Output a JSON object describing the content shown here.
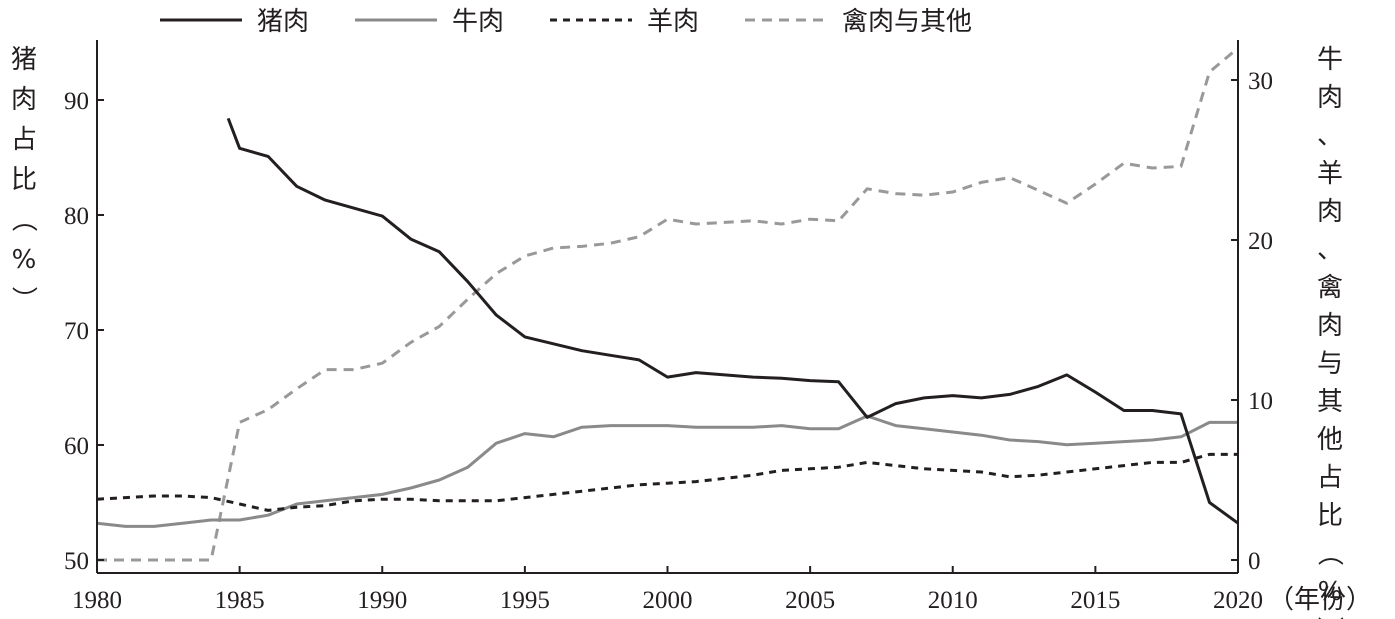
{
  "chart_data": {
    "type": "line",
    "xlabel": "（年份）",
    "ylabel_left": "猪肉占比（%）",
    "ylabel_right": "牛肉、羊肉、禽肉与其他占比（%）",
    "xlim": [
      1980,
      2020
    ],
    "ylim_left": [
      50,
      95
    ],
    "ylim_right": [
      0,
      32
    ],
    "x_ticks": [
      1980,
      1985,
      1990,
      1995,
      2000,
      2005,
      2010,
      2015,
      2020
    ],
    "y_ticks_left": [
      50,
      60,
      70,
      80,
      90
    ],
    "y_ticks_right": [
      0,
      10,
      20,
      30
    ],
    "legend_position": "top",
    "series": [
      {
        "name": "猪肉",
        "axis": "left",
        "color": "#231f20",
        "dash": "solid",
        "x": [
          1984.6,
          1985,
          1986,
          1987,
          1988,
          1989,
          1990,
          1991,
          1992,
          1993,
          1994,
          1995,
          1996,
          1997,
          1998,
          1999,
          2000,
          2001,
          2002,
          2003,
          2004,
          2005,
          2006,
          2007,
          2008,
          2009,
          2010,
          2011,
          2012,
          2013,
          2014,
          2015,
          2016,
          2017,
          2018,
          2019,
          2020
        ],
        "values": [
          88.4,
          85.8,
          85.1,
          82.5,
          81.3,
          80.6,
          79.9,
          77.9,
          76.8,
          74.2,
          71.3,
          69.4,
          68.8,
          68.2,
          67.8,
          67.4,
          65.9,
          66.3,
          66.1,
          65.9,
          65.8,
          65.6,
          65.5,
          62.4,
          63.6,
          64.1,
          64.3,
          64.1,
          64.4,
          65.1,
          66.1,
          64.6,
          63.0,
          63.0,
          62.7,
          55.0,
          53.2
        ]
      },
      {
        "name": "牛肉",
        "axis": "right",
        "color": "#8a8a8a",
        "dash": "solid",
        "x": [
          1980,
          1981,
          1982,
          1983,
          1984,
          1985,
          1986,
          1987,
          1988,
          1989,
          1990,
          1991,
          1992,
          1993,
          1994,
          1995,
          1996,
          1997,
          1998,
          1999,
          2000,
          2001,
          2002,
          2003,
          2004,
          2005,
          2006,
          2007,
          2008,
          2009,
          2010,
          2011,
          2012,
          2013,
          2014,
          2015,
          2016,
          2017,
          2018,
          2019,
          2020
        ],
        "values": [
          2.3,
          2.1,
          2.1,
          2.3,
          2.5,
          2.5,
          2.8,
          3.5,
          3.7,
          3.9,
          4.1,
          4.5,
          5.0,
          5.8,
          7.3,
          7.9,
          7.7,
          8.3,
          8.4,
          8.4,
          8.4,
          8.3,
          8.3,
          8.3,
          8.4,
          8.2,
          8.2,
          9.0,
          8.4,
          8.2,
          8.0,
          7.8,
          7.5,
          7.4,
          7.2,
          7.3,
          7.4,
          7.5,
          7.7,
          8.6,
          8.6
        ]
      },
      {
        "name": "羊肉",
        "axis": "right",
        "color": "#231f20",
        "dash": "short-dash",
        "x": [
          1980,
          1981,
          1982,
          1983,
          1984,
          1985,
          1986,
          1987,
          1988,
          1989,
          1990,
          1991,
          1992,
          1993,
          1994,
          1995,
          1996,
          1997,
          1998,
          1999,
          2000,
          2001,
          2002,
          2003,
          2004,
          2005,
          2006,
          2007,
          2008,
          2009,
          2010,
          2011,
          2012,
          2013,
          2014,
          2015,
          2016,
          2017,
          2018,
          2019,
          2020
        ],
        "values": [
          3.8,
          3.9,
          4.0,
          4.0,
          3.9,
          3.5,
          3.1,
          3.3,
          3.4,
          3.7,
          3.8,
          3.8,
          3.7,
          3.7,
          3.7,
          3.9,
          4.1,
          4.3,
          4.5,
          4.7,
          4.8,
          4.9,
          5.1,
          5.3,
          5.6,
          5.7,
          5.8,
          6.1,
          5.9,
          5.7,
          5.6,
          5.5,
          5.2,
          5.3,
          5.5,
          5.7,
          5.9,
          6.1,
          6.1,
          6.6,
          6.6
        ]
      },
      {
        "name": "禽肉与其他",
        "axis": "right",
        "color": "#999999",
        "dash": "dash",
        "x": [
          1980,
          1981,
          1982,
          1983,
          1984,
          1985,
          1986,
          1987,
          1988,
          1989,
          1990,
          1991,
          1992,
          1993,
          1994,
          1995,
          1996,
          1997,
          1998,
          1999,
          2000,
          2001,
          2002,
          2003,
          2004,
          2005,
          2006,
          2007,
          2008,
          2009,
          2010,
          2011,
          2012,
          2013,
          2014,
          2015,
          2016,
          2017,
          2018,
          2019,
          2020
        ],
        "values": [
          0,
          0,
          0,
          0,
          0,
          8.6,
          9.4,
          10.7,
          11.9,
          11.9,
          12.3,
          13.6,
          14.6,
          16.3,
          17.9,
          19.0,
          19.5,
          19.6,
          19.8,
          20.2,
          21.3,
          21.0,
          21.1,
          21.2,
          21.0,
          21.3,
          21.2,
          23.2,
          22.9,
          22.8,
          23.0,
          23.6,
          23.9,
          23.1,
          22.3,
          23.5,
          24.8,
          24.5,
          24.6,
          30.5,
          32.0
        ]
      }
    ]
  }
}
